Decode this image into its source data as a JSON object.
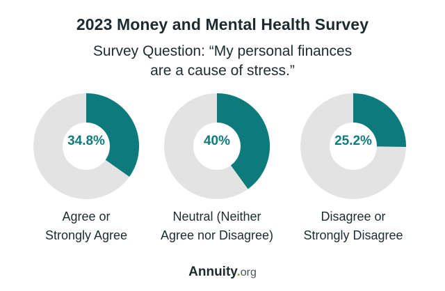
{
  "title": "2023 Money and Mental Health Survey",
  "subtitle": {
    "line1": "Survey Question: “My personal finances",
    "line2": "are a cause of stress.”"
  },
  "colors": {
    "accent": "#0d7b7b",
    "track": "#e3e3e3",
    "text": "#1d2b2f",
    "logo_dot": "#7cb342"
  },
  "chart_data": [
    {
      "type": "pie",
      "label": "34.8%",
      "value": 34.8,
      "category_lines": [
        "Agree or",
        "Strongly Agree"
      ]
    },
    {
      "type": "pie",
      "label": "40%",
      "value": 40,
      "category_lines": [
        "Neutral (Neither",
        "Agree nor Disagree)"
      ]
    },
    {
      "type": "pie",
      "label": "25.2%",
      "value": 25.2,
      "category_lines": [
        "Disagree or",
        "Strongly Disagree"
      ]
    }
  ],
  "logo": {
    "brand": "Annuity",
    "dot": ".",
    "tld": "org"
  }
}
